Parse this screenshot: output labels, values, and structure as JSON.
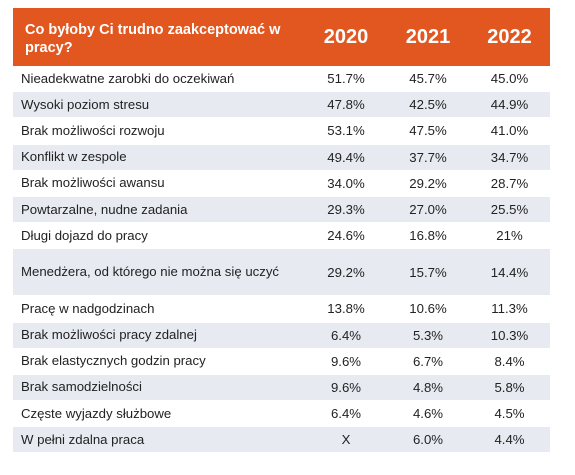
{
  "chart_data": {
    "type": "table",
    "title": "Co byłoby Ci trudno zaakceptować w pracy?",
    "columns": [
      "2020",
      "2021",
      "2022"
    ],
    "rows": [
      {
        "label": "Nieadekwatne zarobki do oczekiwań",
        "values": [
          "51.7%",
          "45.7%",
          "45.0%"
        ]
      },
      {
        "label": "Wysoki poziom stresu",
        "values": [
          "47.8%",
          "42.5%",
          "44.9%"
        ]
      },
      {
        "label": "Brak możliwości rozwoju",
        "values": [
          "53.1%",
          "47.5%",
          "41.0%"
        ]
      },
      {
        "label": "Konflikt w zespole",
        "values": [
          "49.4%",
          "37.7%",
          "34.7%"
        ]
      },
      {
        "label": "Brak możliwości awansu",
        "values": [
          "34.0%",
          "29.2%",
          "28.7%"
        ]
      },
      {
        "label": "Powtarzalne, nudne zadania",
        "values": [
          "29.3%",
          "27.0%",
          "25.5%"
        ]
      },
      {
        "label": "Długi dojazd do pracy",
        "values": [
          "24.6%",
          "16.8%",
          "21%"
        ]
      },
      {
        "label": "Menedżera, od którego nie można się uczyć",
        "values": [
          "29.2%",
          "15.7%",
          "14.4%"
        ]
      },
      {
        "label": "Pracę w nadgodzinach",
        "values": [
          "13.8%",
          "10.6%",
          "11.3%"
        ]
      },
      {
        "label": "Brak możliwości pracy zdalnej",
        "values": [
          "6.4%",
          "5.3%",
          "10.3%"
        ]
      },
      {
        "label": "Brak elastycznych godzin pracy",
        "values": [
          "9.6%",
          "6.7%",
          "8.4%"
        ]
      },
      {
        "label": "Brak samodzielności",
        "values": [
          "9.6%",
          "4.8%",
          "5.8%"
        ]
      },
      {
        "label": "Częste wyjazdy służbowe",
        "values": [
          "6.4%",
          "4.6%",
          "4.5%"
        ]
      },
      {
        "label": "W pełni zdalna praca",
        "values": [
          "X",
          "6.0%",
          "4.4%"
        ]
      }
    ]
  },
  "colors": {
    "header_bg": "#e2561f",
    "header_text": "#ffffff",
    "stripe": "#e7ebf1"
  }
}
